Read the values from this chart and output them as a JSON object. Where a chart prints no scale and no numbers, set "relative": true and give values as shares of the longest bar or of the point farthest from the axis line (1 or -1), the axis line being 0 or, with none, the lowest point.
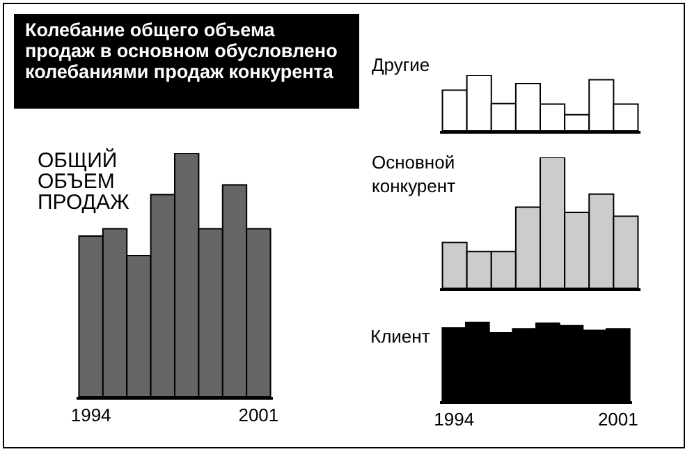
{
  "chart_data": [
    {
      "type": "bar",
      "title": "Колебание общего объема продаж в основном обусловлено колебаниями продаж конкурента",
      "subtitle": "ОБЩИЙ\nОБЪЕМ\nПРОДАЖ",
      "relative": true,
      "categories": [
        "1994",
        null,
        null,
        null,
        null,
        null,
        null,
        "2001"
      ],
      "values": [
        0.66,
        0.69,
        0.58,
        0.83,
        1,
        0.69,
        0.87,
        0.69
      ],
      "color": "#666666"
    },
    {
      "type": "bar",
      "title": "Другие",
      "relative": true,
      "categories": [
        null,
        null,
        null,
        null,
        null,
        null,
        null,
        null
      ],
      "values": [
        0.73,
        1,
        0.49,
        0.85,
        0.48,
        0.29,
        0.92,
        0.48
      ],
      "color": "#ffffff"
    },
    {
      "type": "bar",
      "title": "Основной\nконкурент",
      "relative": true,
      "categories": [
        null,
        null,
        null,
        null,
        null,
        null,
        null,
        null
      ],
      "values": [
        0.35,
        0.28,
        0.28,
        0.62,
        1,
        0.58,
        0.72,
        0.55
      ],
      "color": "#cccccc"
    },
    {
      "type": "bar",
      "title": "Клиент",
      "relative": true,
      "categories": [
        "1994",
        null,
        null,
        null,
        null,
        null,
        null,
        "2001"
      ],
      "values": [
        0.92,
        1,
        0.86,
        0.91,
        0.98,
        0.95,
        0.89,
        0.91
      ],
      "color": "#000000"
    }
  ]
}
